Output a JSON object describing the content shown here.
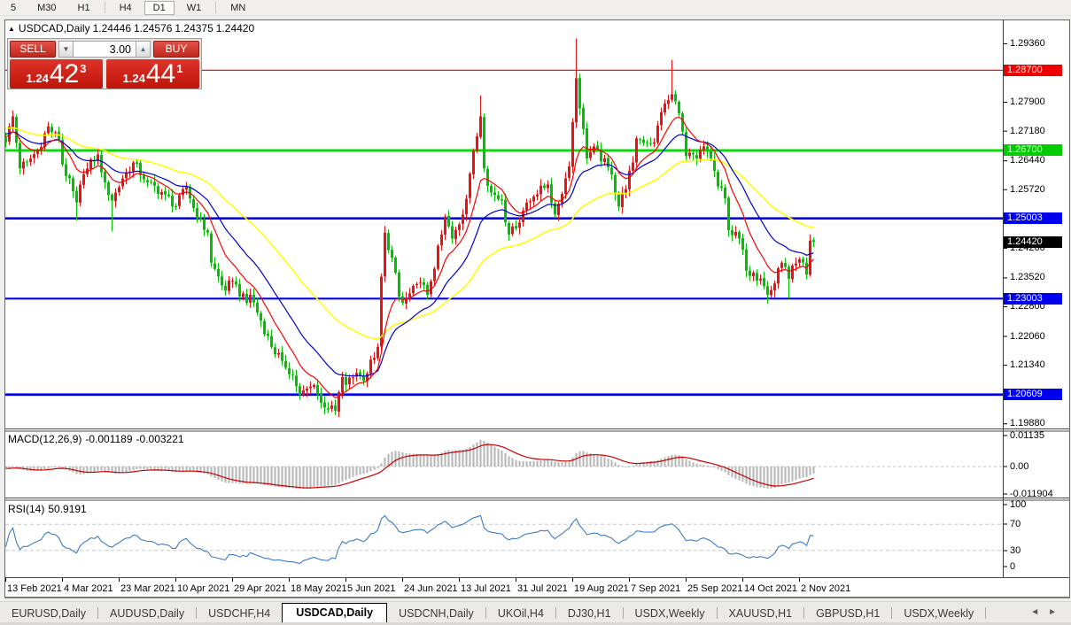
{
  "toolbar": {
    "items": [
      "5",
      "M30",
      "H1",
      "H4",
      "D1",
      "W1",
      "MN"
    ],
    "active": "D1",
    "separators_after": [
      3,
      6
    ]
  },
  "chart_header": {
    "symbol": "USDCAD,Daily",
    "open": "1.24446",
    "high": "1.24576",
    "low": "1.24375",
    "close": "1.24420"
  },
  "trade_panel": {
    "sell_label": "SELL",
    "buy_label": "BUY",
    "volume": "3.00",
    "sell_price": {
      "prefix": "1.24",
      "big": "42",
      "sup": "3"
    },
    "buy_price": {
      "prefix": "1.24",
      "big": "44",
      "sup": "1"
    }
  },
  "price_axis": {
    "ticks": [
      1.2936,
      1.2864,
      1.279,
      1.2718,
      1.2644,
      1.2572,
      1.25,
      1.2426,
      1.2352,
      1.228,
      1.2206,
      1.2134,
      1.2062,
      1.1988
    ],
    "badges": [
      {
        "text": "1.28700",
        "price": 1.287,
        "color": "#ee0000"
      },
      {
        "text": "1.26700",
        "price": 1.267,
        "color": "#00cc00"
      },
      {
        "text": "1.25003",
        "price": 1.25003,
        "color": "#0000f0"
      },
      {
        "text": "1.24420",
        "price": 1.2442,
        "color": "#000000"
      },
      {
        "text": "1.23003",
        "price": 1.23003,
        "color": "#0000f0"
      },
      {
        "text": "1.20609",
        "price": 1.20609,
        "color": "#0000f0"
      }
    ]
  },
  "indicators": {
    "macd": {
      "label": "MACD(12,26,9)",
      "main": "-0.001189",
      "signal": "-0.003221",
      "axis": [
        "0.01135",
        "0.00",
        "-0.011904"
      ]
    },
    "rsi": {
      "label": "RSI(14)",
      "value": "50.9191",
      "axis": [
        "100",
        "70",
        "30",
        "0"
      ]
    }
  },
  "tabs": {
    "items": [
      "EURUSD,Daily",
      "AUDUSD,Daily",
      "USDCHF,H4",
      "USDCAD,Daily",
      "USDCNH,Daily",
      "UKOil,H4",
      "DJ30,H1",
      "USDX,Weekly",
      "XAUUSD,H1",
      "GBPUSD,H1",
      "USDX,Weekly"
    ],
    "active_index": 3,
    "scroll_left_icon": "◄",
    "scroll_right_icon": "►"
  },
  "chart_data": {
    "type": "candlestick",
    "symbol": "USDCAD",
    "timeframe": "Daily",
    "last_ohlc": {
      "open": 1.24446,
      "high": 1.24576,
      "low": 1.24375,
      "close": 1.2442
    },
    "visible_price_range": [
      1.1976,
      1.2992
    ],
    "bars_visible": 229,
    "date_labels": [
      "13 Feb 2021",
      "4 Mar 2021",
      "23 Mar 2021",
      "10 Apr 2021",
      "29 Apr 2021",
      "18 May 2021",
      "5 Jun 2021",
      "24 Jun 2021",
      "13 Jul 2021",
      "31 Jul 2021",
      "19 Aug 2021",
      "7 Sep 2021",
      "25 Sep 2021",
      "14 Oct 2021",
      "2 Nov 2021"
    ],
    "horizontal_lines": [
      {
        "price": 1.287,
        "color": "#dd0000",
        "width": 1.2
      },
      {
        "price": 1.267,
        "color": "#00dd00",
        "width": 2.8
      },
      {
        "price": 1.25003,
        "color": "#0000ee",
        "width": 2.6
      },
      {
        "price": 1.23003,
        "color": "#0000ee",
        "width": 2.2
      },
      {
        "price": 1.20609,
        "color": "#0000ee",
        "width": 2.8
      }
    ],
    "current_price_marker": {
      "price": 1.2442,
      "badge_color": "#000000"
    },
    "candle_colors": {
      "up": "#ee1111",
      "down": "#00c000"
    },
    "moving_average_colors": {
      "fast": "#ff0000",
      "medium": "#0000cc",
      "slow": "#ffff00"
    },
    "close_path": [
      [
        0,
        1.269
      ],
      [
        2,
        1.2755
      ],
      [
        4,
        1.2625
      ],
      [
        6,
        1.264
      ],
      [
        9,
        1.267
      ],
      [
        12,
        1.273
      ],
      [
        15,
        1.2695
      ],
      [
        16,
        1.2635
      ],
      [
        20,
        1.254
      ],
      [
        22,
        1.261
      ],
      [
        26,
        1.266
      ],
      [
        28,
        1.259
      ],
      [
        30,
        1.2545
      ],
      [
        33,
        1.26
      ],
      [
        36,
        1.264
      ],
      [
        40,
        1.259
      ],
      [
        45,
        1.256
      ],
      [
        48,
        1.253
      ],
      [
        51,
        1.258
      ],
      [
        54,
        1.25
      ],
      [
        57,
        1.2465
      ],
      [
        58,
        1.239
      ],
      [
        62,
        1.232
      ],
      [
        64,
        1.2345
      ],
      [
        68,
        1.229
      ],
      [
        69,
        1.231
      ],
      [
        72,
        1.2245
      ],
      [
        75,
        1.218
      ],
      [
        78,
        1.2145
      ],
      [
        81,
        1.211
      ],
      [
        83,
        1.206
      ],
      [
        87,
        1.2085
      ],
      [
        89,
        1.204
      ],
      [
        93,
        1.202
      ],
      [
        95,
        1.2105
      ],
      [
        96,
        1.2085
      ],
      [
        99,
        1.2115
      ],
      [
        101,
        1.2095
      ],
      [
        105,
        1.218
      ],
      [
        106,
        1.2355
      ],
      [
        107,
        1.2465
      ],
      [
        110,
        1.2365
      ],
      [
        111,
        1.2305
      ],
      [
        112,
        1.229
      ],
      [
        117,
        1.234
      ],
      [
        119,
        1.231
      ],
      [
        123,
        1.246
      ],
      [
        124,
        1.2505
      ],
      [
        126,
        1.245
      ],
      [
        129,
        1.251
      ],
      [
        131,
        1.2612
      ],
      [
        134,
        1.2755
      ],
      [
        135,
        1.2625
      ],
      [
        137,
        1.2565
      ],
      [
        140,
        1.2545
      ],
      [
        142,
        1.246
      ],
      [
        144,
        1.2475
      ],
      [
        147,
        1.254
      ],
      [
        149,
        1.2555
      ],
      [
        153,
        1.2585
      ],
      [
        155,
        1.251
      ],
      [
        159,
        1.263
      ],
      [
        161,
        1.285
      ],
      [
        164,
        1.265
      ],
      [
        166,
        1.268
      ],
      [
        171,
        1.261
      ],
      [
        173,
        1.253
      ],
      [
        177,
        1.264
      ],
      [
        178,
        1.27
      ],
      [
        183,
        1.269
      ],
      [
        185,
        1.2765
      ],
      [
        188,
        1.281
      ],
      [
        190,
        1.2762
      ],
      [
        192,
        1.2656
      ],
      [
        195,
        1.265
      ],
      [
        197,
        1.268
      ],
      [
        199,
        1.265
      ],
      [
        201,
        1.258
      ],
      [
        203,
        1.255
      ],
      [
        204,
        1.2471
      ],
      [
        207,
        1.245
      ],
      [
        209,
        1.237
      ],
      [
        211,
        1.2365
      ],
      [
        213,
        1.235
      ],
      [
        215,
        1.231
      ],
      [
        217,
        1.2338
      ],
      [
        219,
        1.239
      ],
      [
        221,
        1.235
      ],
      [
        223,
        1.2388
      ],
      [
        225,
        1.239
      ],
      [
        226,
        1.236
      ],
      [
        227,
        1.2445
      ],
      [
        228,
        1.2442
      ]
    ],
    "spike_highs": [
      [
        107,
        1.2482
      ],
      [
        134,
        1.2807
      ],
      [
        161,
        1.2949
      ],
      [
        188,
        1.2896
      ]
    ],
    "spike_lows": [
      [
        20,
        1.2495
      ],
      [
        30,
        1.2468
      ],
      [
        93,
        1.201
      ],
      [
        215,
        1.2288
      ],
      [
        221,
        1.23
      ]
    ],
    "macd": {
      "histogram_color": "#b4b4b4",
      "signal_color": "#cc0000",
      "main_end": -0.001189,
      "signal_end": -0.003221,
      "axis_max": 0.01135,
      "axis_min": -0.011904
    },
    "rsi": {
      "line_color": "#3b7dc4",
      "end_value": 50.9191,
      "levels": [
        70,
        30
      ]
    }
  }
}
